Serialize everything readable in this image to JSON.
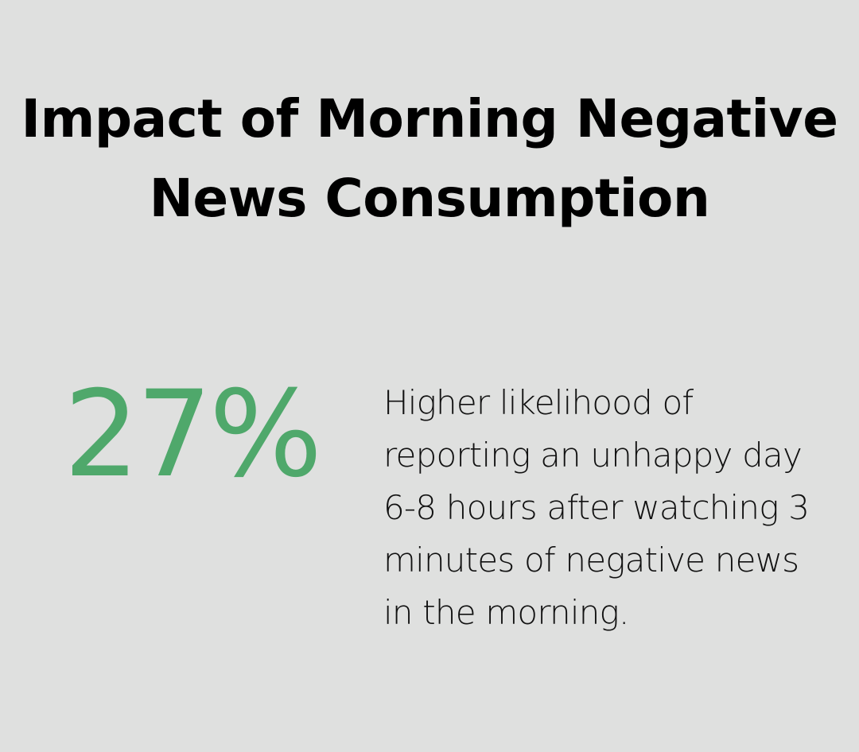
{
  "title": "Impact of Morning Negative News Consumption",
  "stat": {
    "value": "27%",
    "color": "#4fa86b"
  },
  "description": "Higher likelihood of reporting an unhappy day 6-8 hours after watching 3 minutes of negative news in the morning."
}
